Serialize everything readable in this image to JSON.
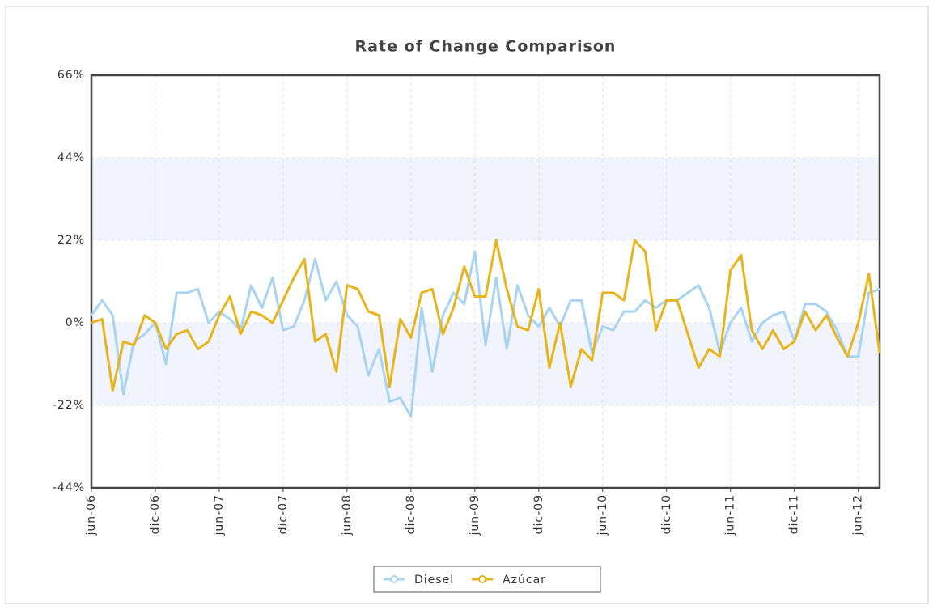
{
  "chart_data": {
    "type": "line",
    "title": "Rate of Change Comparison",
    "categories": [
      "jun-06",
      null,
      null,
      null,
      null,
      null,
      "dic-06",
      null,
      null,
      null,
      null,
      null,
      "jun-07",
      null,
      null,
      null,
      null,
      null,
      "dic-07",
      null,
      null,
      null,
      null,
      null,
      "jun-08",
      null,
      null,
      null,
      null,
      null,
      "dic-08",
      null,
      null,
      null,
      null,
      null,
      "jun-09",
      null,
      null,
      null,
      null,
      null,
      "dic-09",
      null,
      null,
      null,
      null,
      null,
      "jun-10",
      null,
      null,
      null,
      null,
      null,
      "dic-10",
      null,
      null,
      null,
      null,
      null,
      "jun-11",
      null,
      null,
      null,
      null,
      null,
      "dic-11",
      null,
      null,
      null,
      null,
      null,
      "jun-12",
      null,
      null
    ],
    "series": [
      {
        "name": "Diesel",
        "color": "#a8d4f2",
        "values": [
          2,
          6,
          2,
          -19,
          -5,
          -3,
          0,
          -11,
          8,
          8,
          9,
          0,
          3,
          1,
          -2,
          10,
          4,
          12,
          -2,
          -1,
          6,
          17,
          6,
          11,
          2,
          -1,
          -14,
          -7,
          -21,
          -20,
          -25,
          4,
          -13,
          2,
          8,
          5,
          19,
          -6,
          12,
          -7,
          10,
          2,
          -1,
          4,
          -1,
          6,
          6,
          -8,
          -1,
          -2,
          3,
          3,
          6,
          4,
          6,
          6,
          8,
          10,
          4,
          -8,
          0,
          4,
          -5,
          0,
          2,
          3,
          -5,
          5,
          5,
          3,
          -2,
          -9,
          -9,
          8,
          9
        ]
      },
      {
        "name": "Azúcar",
        "color": "#e8b41c",
        "values": [
          0,
          1,
          -18,
          -5,
          -6,
          2,
          0,
          -7,
          -3,
          -2,
          -7,
          -5,
          2,
          7,
          -3,
          3,
          2,
          0,
          6,
          12,
          17,
          -5,
          -3,
          -13,
          10,
          9,
          3,
          2,
          -17,
          1,
          -4,
          8,
          9,
          -3,
          4,
          15,
          7,
          7,
          22,
          9,
          -1,
          -2,
          9,
          -12,
          0,
          -17,
          -7,
          -10,
          8,
          8,
          6,
          22,
          19,
          -2,
          6,
          6,
          -3,
          -12,
          -7,
          -9,
          14,
          18,
          -2,
          -7,
          -2,
          -7,
          -5,
          3,
          -2,
          2,
          -4,
          -9,
          0,
          13,
          -8
        ]
      }
    ],
    "ylim": [
      -44,
      66
    ],
    "yticks": [
      {
        "value": -44,
        "label": "-44%"
      },
      {
        "value": -22,
        "label": "-22%"
      },
      {
        "value": 0,
        "label": "0%"
      },
      {
        "value": 22,
        "label": "22%"
      },
      {
        "value": 44,
        "label": "44%"
      },
      {
        "value": 66,
        "label": "66%"
      }
    ],
    "grid": true,
    "bands": true,
    "legend": "bottom"
  }
}
